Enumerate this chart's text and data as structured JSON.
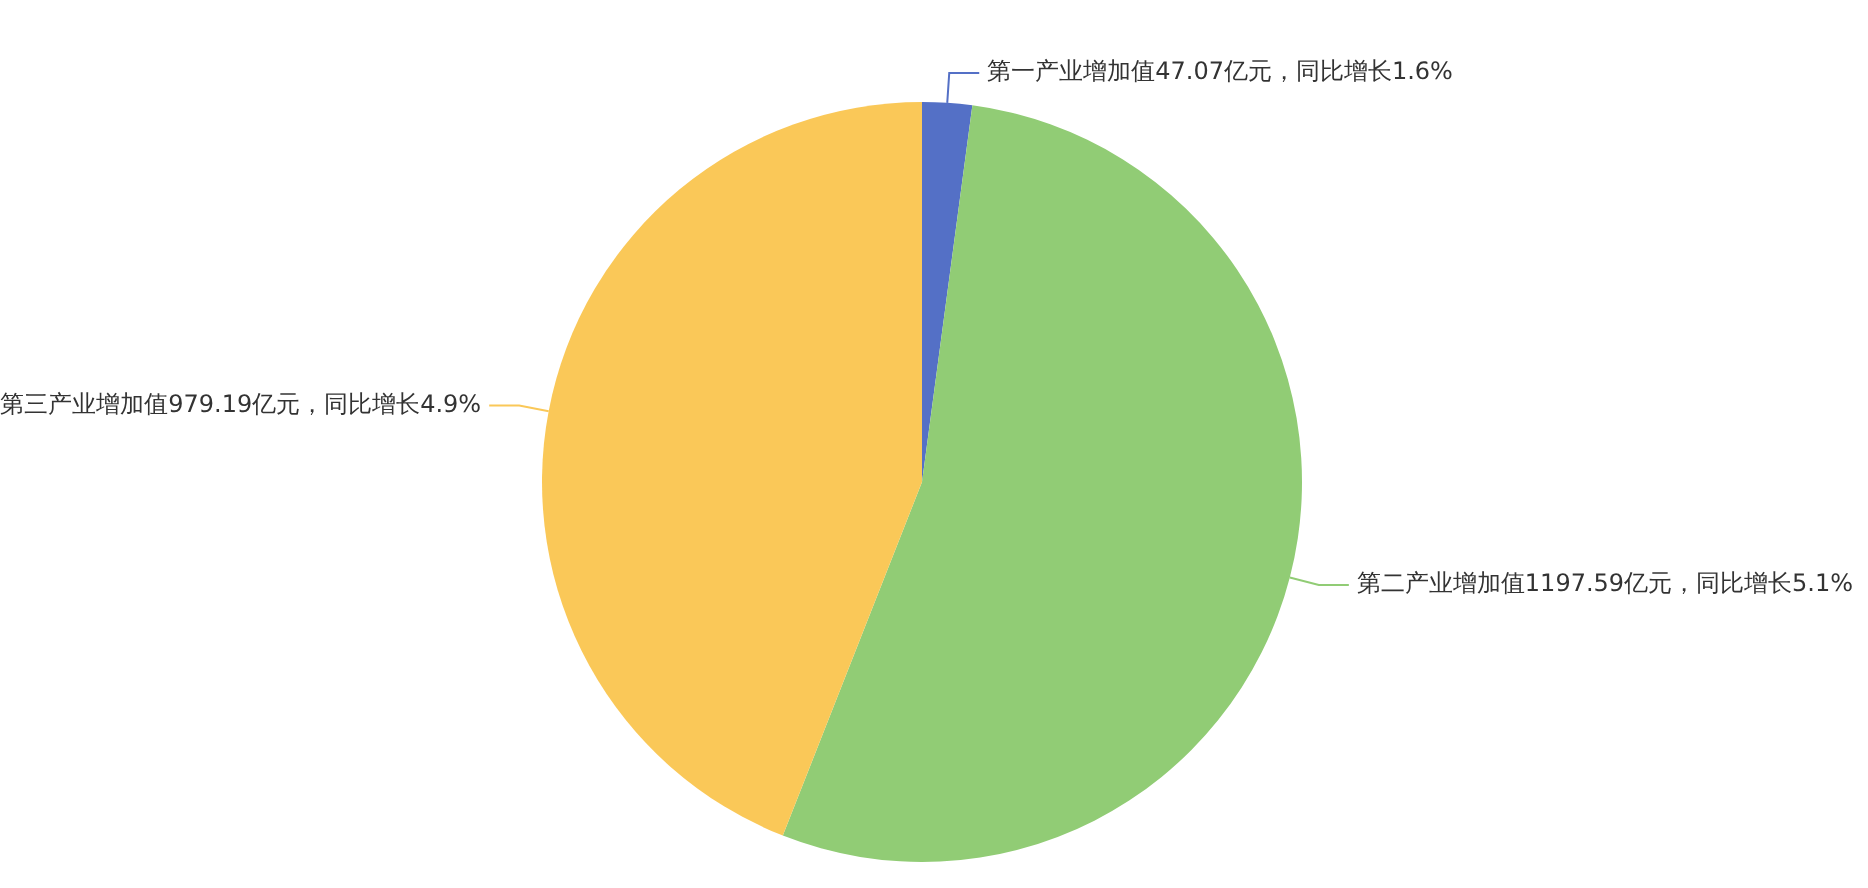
{
  "chart_data": {
    "type": "pie",
    "categories": [
      "第一产业增加值47.07亿元，同比增长1.6%",
      "第二产业增加值1197.59亿元，同比增长5.1%",
      "第三产业增加值979.19亿元，同比增长4.9%"
    ],
    "values": [
      47.07,
      1197.59,
      979.19
    ],
    "colors": [
      "#5470c6",
      "#91cc75",
      "#fac858"
    ],
    "legend": false
  }
}
